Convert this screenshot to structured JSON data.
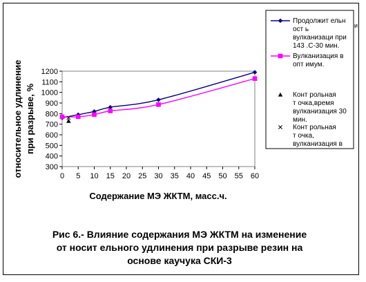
{
  "chart_data": {
    "type": "line",
    "title": "",
    "xlabel": "Содержание МЭ ЖКТМ, масс.ч.",
    "ylabel_lines": [
      "относительное удлинение",
      "при разрыве, %"
    ],
    "x": [
      0,
      5,
      10,
      15,
      30,
      60
    ],
    "x_ticks": [
      0,
      5,
      10,
      15,
      20,
      25,
      30,
      35,
      40,
      45,
      50,
      55,
      60
    ],
    "xlim": [
      0,
      60
    ],
    "ylim": [
      300,
      1200
    ],
    "y_ticks": [
      300,
      400,
      500,
      600,
      700,
      800,
      900,
      1000,
      1100,
      1200
    ],
    "grid": false,
    "legend_position": "right",
    "series": [
      {
        "name_lines": [
          "Продолжит ельн",
          "ост ь",
          "вулканизаци при",
          "143 .С-30 мин."
        ],
        "x": [
          0,
          5,
          10,
          15,
          30,
          60
        ],
        "values": [
          760,
          790,
          820,
          860,
          930,
          1190
        ],
        "color": "#000080",
        "marker": "diamond"
      },
      {
        "name_lines": [
          "Вулканизация в",
          "опт имум."
        ],
        "x": [
          0,
          5,
          10,
          15,
          30,
          60
        ],
        "values": [
          770,
          770,
          790,
          825,
          885,
          1130
        ],
        "color": "#ff00ff",
        "marker": "square"
      },
      {
        "name_lines": [
          "Конт рольная",
          "т очка,время",
          "вулканизация 30",
          "мин."
        ],
        "x": [
          2
        ],
        "values": [
          730
        ],
        "color": "#000000",
        "marker": "triangle"
      },
      {
        "name_lines": [
          "Конт рольная",
          "т очка,",
          "вулканизация в"
        ],
        "x": [
          2
        ],
        "values": [
          760
        ],
        "color": "#000000",
        "marker": "x"
      }
    ],
    "legend_overflow_text": "и"
  },
  "caption": {
    "lines": [
      "Рис 6.- Влияние содержания МЭ ЖКТМ на изменение",
      "от  носит  ельного удлинения при разрыве резин на",
      "основе каучука СКИ-3"
    ]
  }
}
